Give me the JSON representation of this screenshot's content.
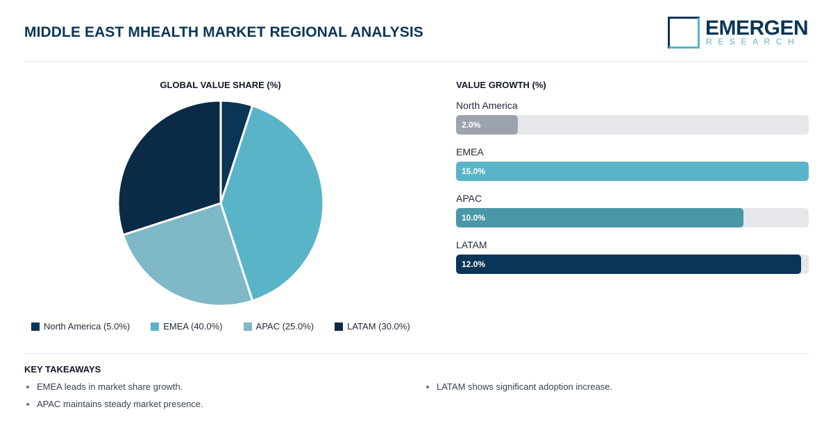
{
  "header": {
    "title": "MIDDLE EAST MHEALTH MARKET REGIONAL ANALYSIS",
    "logo_word": "EMERGEN",
    "logo_sub": "RESEARCH"
  },
  "colors": {
    "navy": "#0b3556",
    "teal": "#5ab4c8",
    "light_teal": "#7fb8c6",
    "dark_teal": "#4a97a8",
    "gray": "#9ca3af"
  },
  "chart_data": [
    {
      "type": "pie",
      "title": "GLOBAL VALUE SHARE (%)",
      "categories": [
        "North America",
        "EMEA",
        "APAC",
        "LATAM"
      ],
      "values": [
        5.0,
        40.0,
        25.0,
        30.0
      ],
      "colors": [
        "#0b3556",
        "#5ab4c8",
        "#7fb8c6",
        "#0b2a45"
      ],
      "legend": {
        "placement": "bottom",
        "labels": [
          "North America (5.0%)",
          "EMEA (40.0%)",
          "APAC (25.0%)",
          "LATAM (30.0%)"
        ]
      }
    },
    {
      "type": "bar",
      "orientation": "horizontal",
      "title": "VALUE GROWTH (%)",
      "categories": [
        "North America",
        "EMEA",
        "APAC",
        "LATAM"
      ],
      "values": [
        2.0,
        15.0,
        10.0,
        12.0
      ],
      "value_labels": [
        "2.0%",
        "15.0%",
        "10.0%",
        "12.0%"
      ],
      "bar_levels": [
        0.175,
        1.0,
        0.815,
        0.978
      ],
      "colors": [
        "#9ca3af",
        "#5ab4c8",
        "#4a97a8",
        "#0b3556"
      ]
    }
  ],
  "takeaways": {
    "title": "KEY TAKEAWAYS",
    "left": [
      "EMEA leads in market share growth.",
      "APAC maintains steady market presence."
    ],
    "right": [
      "LATAM shows significant adoption increase."
    ]
  }
}
